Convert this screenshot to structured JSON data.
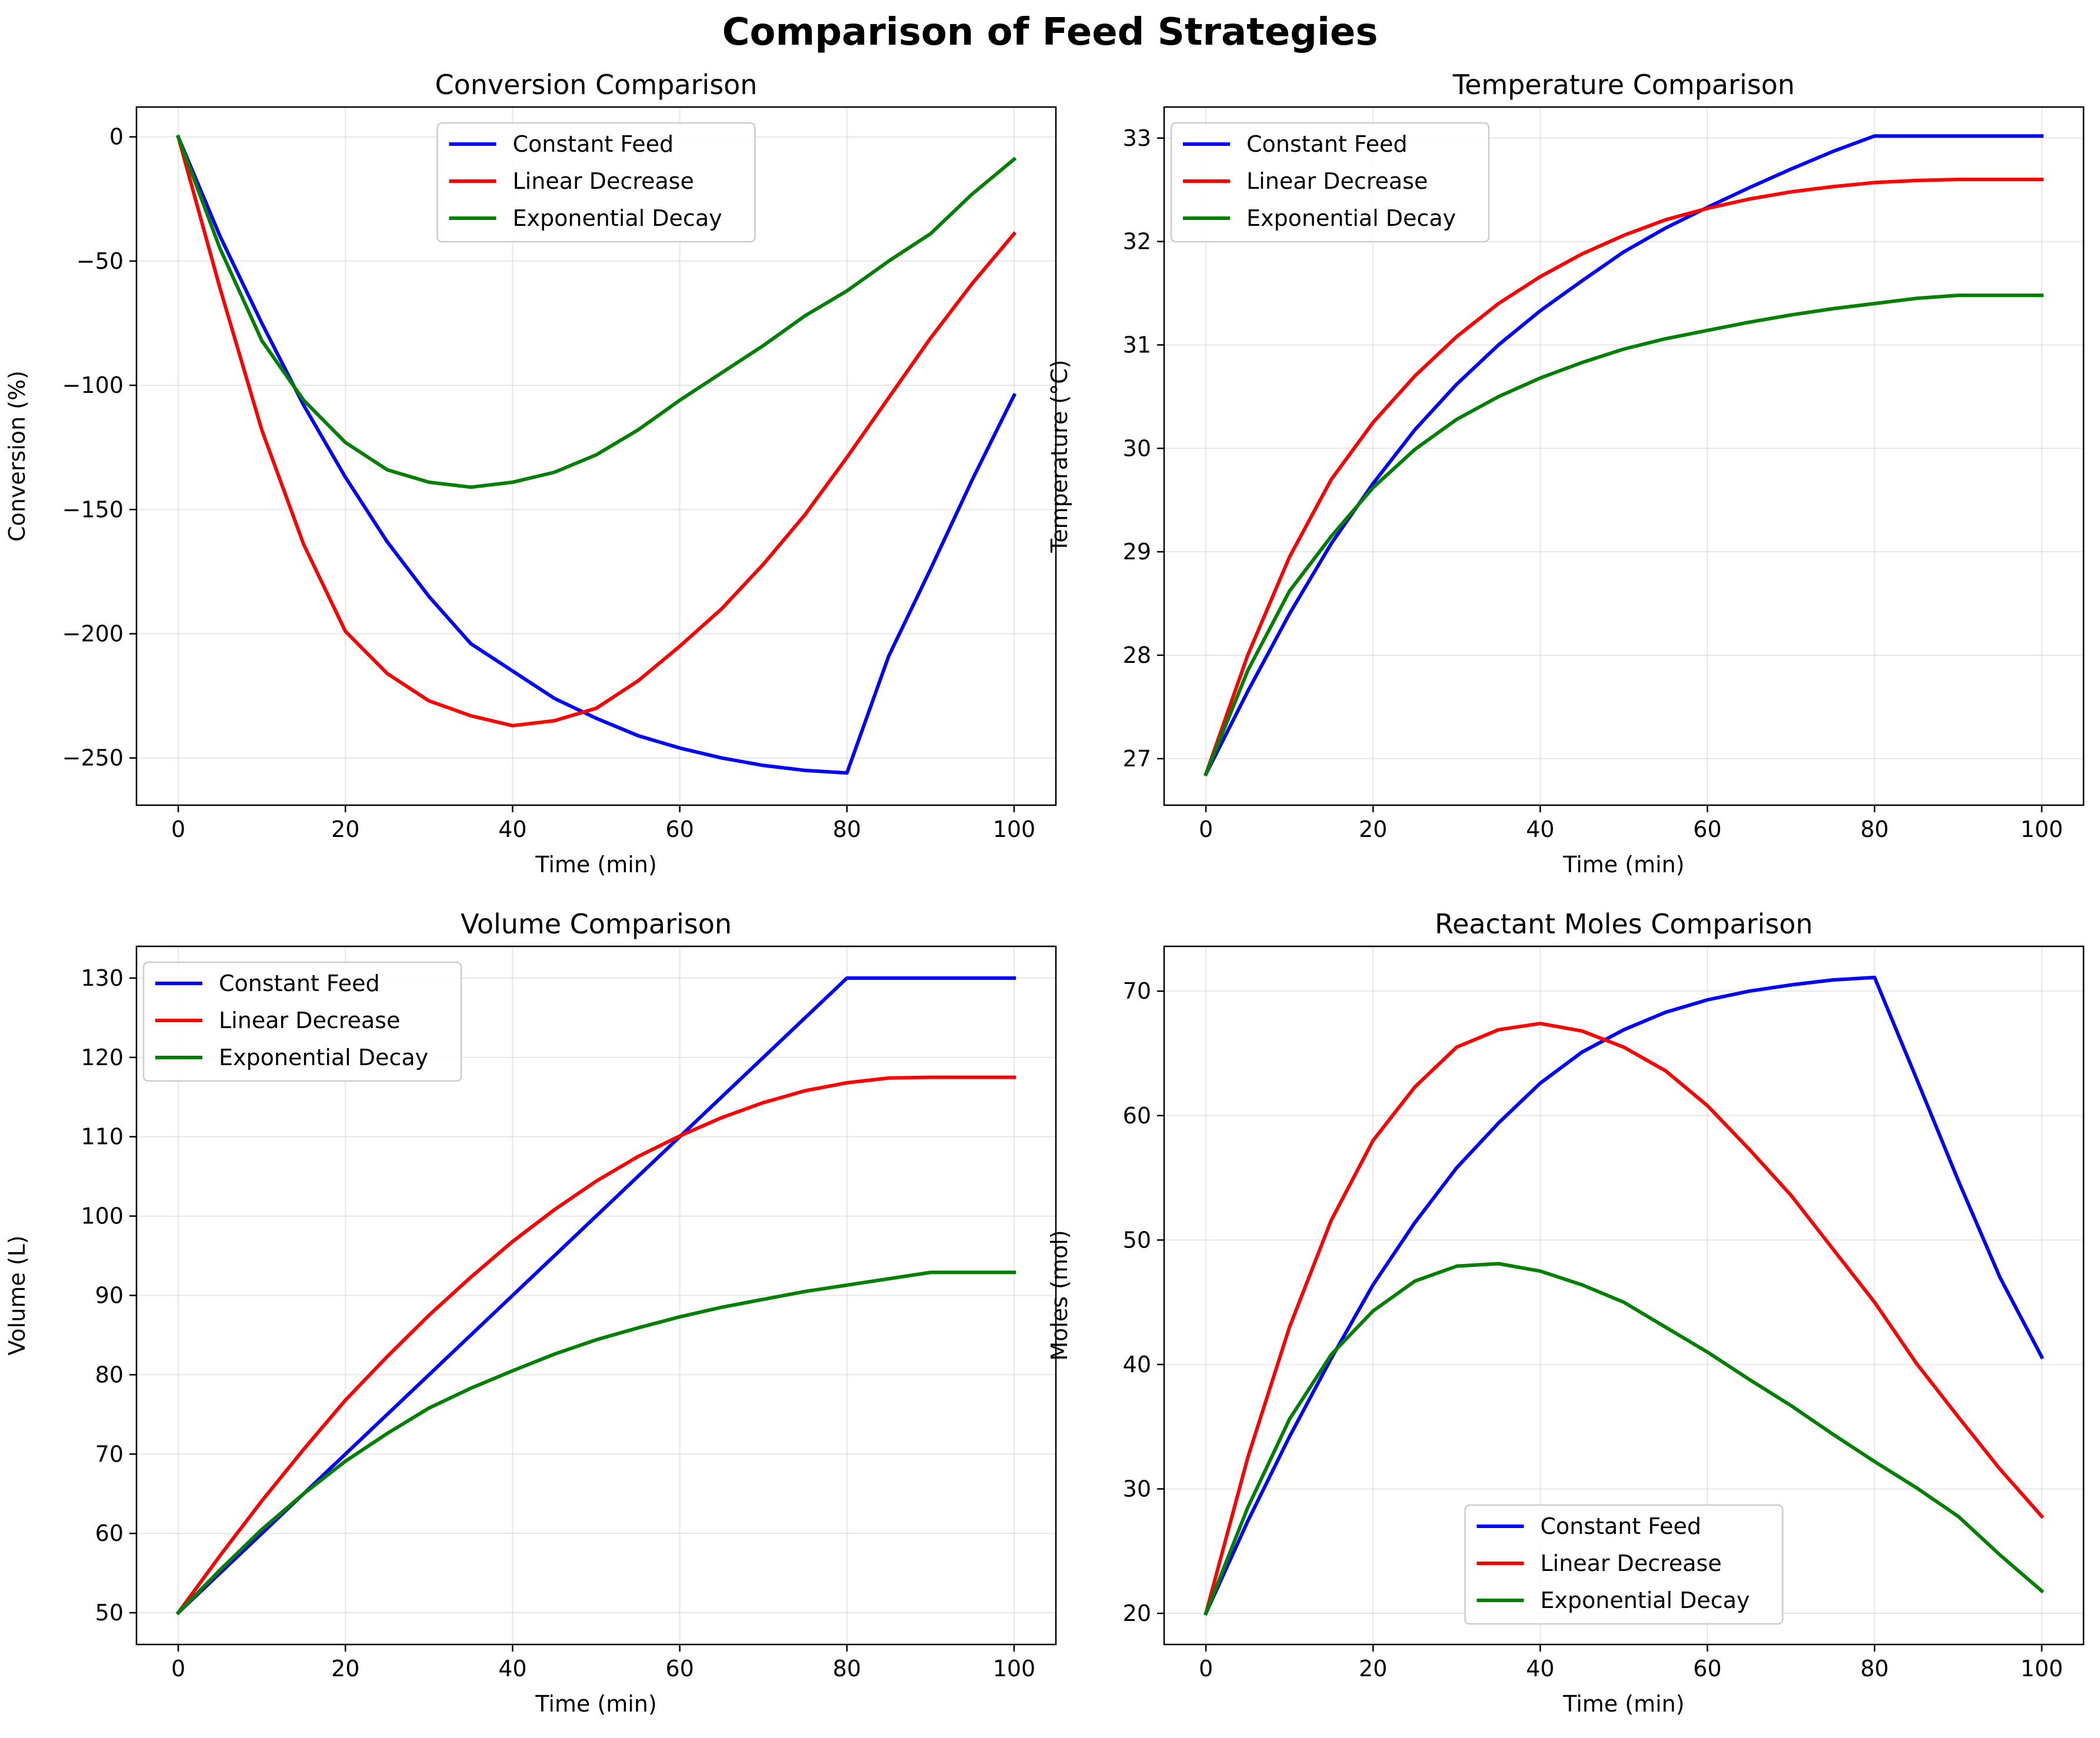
{
  "suptitle": "Comparison of Feed Strategies",
  "colors": {
    "blue": "#0000ff",
    "red": "#ff0000",
    "green": "#008000"
  },
  "chart_data": [
    {
      "type": "line",
      "title": "Conversion Comparison",
      "xlabel": "Time (min)",
      "ylabel": "Conversion (%)",
      "xlim": [
        -5,
        105
      ],
      "ylim": [
        -269,
        12
      ],
      "xticks": [
        0,
        20,
        40,
        60,
        80,
        100
      ],
      "yticks": [
        0,
        -50,
        -100,
        -150,
        -200,
        -250
      ],
      "grid": true,
      "legend": "upper center",
      "x": [
        0,
        5,
        10,
        15,
        20,
        25,
        30,
        35,
        40,
        45,
        50,
        55,
        60,
        65,
        70,
        75,
        80,
        85,
        90,
        95,
        100
      ],
      "series": [
        {
          "name": "Constant Feed",
          "color": "#0000ff",
          "values": [
            0,
            -40,
            -75,
            -108,
            -137,
            -163,
            -185,
            -204,
            -215,
            -226,
            -234,
            -241,
            -246,
            -250,
            -253,
            -255,
            -256,
            -209,
            -174,
            -138,
            -104
          ]
        },
        {
          "name": "Linear Decrease",
          "color": "#ff0000",
          "values": [
            0,
            -61,
            -118,
            -164,
            -199,
            -216,
            -227,
            -233,
            -237,
            -235,
            -230,
            -219,
            -205,
            -190,
            -172,
            -152,
            -129,
            -105,
            -81,
            -59,
            -39
          ]
        },
        {
          "name": "Exponential Decay",
          "color": "#008000",
          "values": [
            0,
            -45,
            -82,
            -106,
            -123,
            -134,
            -139,
            -141,
            -139,
            -135,
            -128,
            -118,
            -106,
            -95,
            -84,
            -72,
            -62,
            -50,
            -39,
            -23,
            -9
          ]
        }
      ]
    },
    {
      "type": "line",
      "title": "Temperature Comparison",
      "xlabel": "Time (min)",
      "ylabel": "Temperature (°C)",
      "xlim": [
        -5,
        105
      ],
      "ylim": [
        26.55,
        33.3
      ],
      "xticks": [
        0,
        20,
        40,
        60,
        80,
        100
      ],
      "yticks": [
        27,
        28,
        29,
        30,
        31,
        32,
        33
      ],
      "grid": true,
      "legend": "upper left",
      "x": [
        0,
        5,
        10,
        15,
        20,
        25,
        30,
        35,
        40,
        45,
        50,
        55,
        60,
        65,
        70,
        75,
        80,
        85,
        90,
        95,
        100
      ],
      "series": [
        {
          "name": "Constant Feed",
          "color": "#0000ff",
          "values": [
            26.85,
            27.65,
            28.4,
            29.08,
            29.66,
            30.18,
            30.62,
            31.0,
            31.33,
            31.62,
            31.9,
            32.13,
            32.33,
            32.52,
            32.7,
            32.87,
            33.02,
            33.02,
            33.02,
            33.02,
            33.02
          ]
        },
        {
          "name": "Linear Decrease",
          "color": "#ff0000",
          "values": [
            26.85,
            28.0,
            28.95,
            29.7,
            30.25,
            30.7,
            31.08,
            31.4,
            31.66,
            31.88,
            32.06,
            32.21,
            32.32,
            32.41,
            32.48,
            32.53,
            32.57,
            32.59,
            32.6,
            32.6,
            32.6
          ]
        },
        {
          "name": "Exponential Decay",
          "color": "#008000",
          "values": [
            26.85,
            27.85,
            28.62,
            29.15,
            29.62,
            29.99,
            30.28,
            30.5,
            30.68,
            30.83,
            30.96,
            31.06,
            31.14,
            31.22,
            31.29,
            31.35,
            31.4,
            31.45,
            31.48,
            31.48,
            31.48
          ]
        }
      ]
    },
    {
      "type": "line",
      "title": "Volume Comparison",
      "xlabel": "Time (min)",
      "ylabel": "Volume (L)",
      "xlim": [
        -5,
        105
      ],
      "ylim": [
        46,
        134
      ],
      "xticks": [
        0,
        20,
        40,
        60,
        80,
        100
      ],
      "yticks": [
        50,
        60,
        70,
        80,
        90,
        100,
        110,
        120,
        130
      ],
      "grid": true,
      "legend": "upper left",
      "x": [
        0,
        5,
        10,
        15,
        20,
        25,
        30,
        35,
        40,
        45,
        50,
        55,
        60,
        65,
        70,
        75,
        80,
        85,
        90,
        95,
        100
      ],
      "series": [
        {
          "name": "Constant Feed",
          "color": "#0000ff",
          "values": [
            50,
            55,
            60,
            65,
            70,
            75,
            80,
            85,
            90,
            95,
            100,
            105,
            110,
            115,
            120,
            125,
            130,
            130,
            130,
            130,
            130
          ]
        },
        {
          "name": "Linear Decrease",
          "color": "#ff0000",
          "values": [
            50,
            57.2,
            64.1,
            70.6,
            76.8,
            82.3,
            87.5,
            92.3,
            96.8,
            100.8,
            104.4,
            107.5,
            110.1,
            112.4,
            114.3,
            115.8,
            116.8,
            117.4,
            117.5,
            117.5,
            117.5
          ]
        },
        {
          "name": "Exponential Decay",
          "color": "#008000",
          "values": [
            50,
            55.4,
            60.5,
            65,
            69.1,
            72.6,
            75.8,
            78.3,
            80.5,
            82.6,
            84.4,
            85.9,
            87.3,
            88.5,
            89.5,
            90.5,
            91.3,
            92.1,
            92.9,
            92.9,
            92.9
          ]
        }
      ]
    },
    {
      "type": "line",
      "title": "Reactant Moles Comparison",
      "xlabel": "Time (min)",
      "ylabel": "Moles (mol)",
      "xlim": [
        -5,
        105
      ],
      "ylim": [
        17.5,
        73.6
      ],
      "xticks": [
        0,
        20,
        40,
        60,
        80,
        100
      ],
      "yticks": [
        20,
        30,
        40,
        50,
        60,
        70
      ],
      "grid": true,
      "legend": "lower center",
      "x": [
        0,
        5,
        10,
        15,
        20,
        25,
        30,
        35,
        40,
        45,
        50,
        55,
        60,
        65,
        70,
        75,
        80,
        85,
        90,
        95,
        100
      ],
      "series": [
        {
          "name": "Constant Feed",
          "color": "#0000ff",
          "values": [
            20,
            27.4,
            34.2,
            40.5,
            46.4,
            51.4,
            55.8,
            59.4,
            62.6,
            65.1,
            66.9,
            68.3,
            69.3,
            70,
            70.5,
            70.9,
            71.1,
            63,
            54.8,
            47,
            40.6
          ]
        },
        {
          "name": "Linear Decrease",
          "color": "#ff0000",
          "values": [
            20,
            32.5,
            43,
            51.6,
            58,
            62.3,
            65.5,
            66.9,
            67.4,
            66.8,
            65.5,
            63.6,
            60.8,
            57.3,
            53.6,
            49.3,
            45,
            40.1,
            35.8,
            31.6,
            27.8
          ]
        },
        {
          "name": "Exponential Decay",
          "color": "#008000",
          "values": [
            20,
            28.5,
            35.6,
            40.8,
            44.3,
            46.7,
            47.9,
            48.1,
            47.5,
            46.4,
            45,
            43,
            41,
            38.8,
            36.7,
            34.4,
            32.2,
            30.1,
            27.8,
            24.7,
            21.8
          ]
        }
      ]
    }
  ]
}
